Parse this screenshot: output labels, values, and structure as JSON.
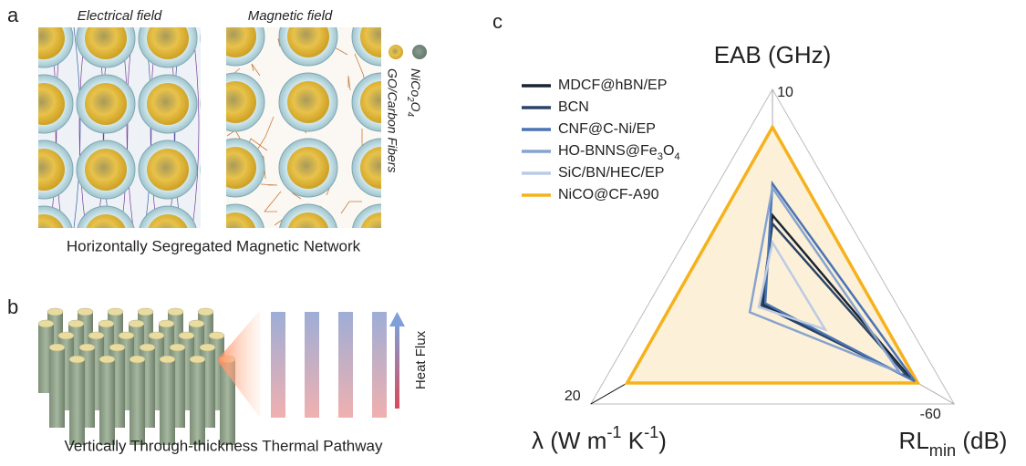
{
  "panels": {
    "a": {
      "label": "a",
      "left_title": "Electrical field",
      "right_title": "Magnetic field",
      "legend": [
        [
          "NiCo",
          {
            "sub": "2"
          },
          "O",
          {
            "sub": "4"
          }
        ],
        "GO/Carbon Fibers"
      ],
      "caption": "Horizontally Segregated Magnetic Network"
    },
    "b": {
      "label": "b",
      "arrow_label": "Heat Flux",
      "caption": "Vertically Through-thickness Thermal Pathway"
    },
    "c": {
      "label": "c"
    }
  },
  "chart_data": {
    "type": "radar",
    "axes": [
      {
        "label": "EAB (GHz)",
        "lim": [
          0,
          10
        ],
        "ticks": [
          5,
          10
        ],
        "color": "#aaaaaa"
      },
      {
        "label": [
          "RL",
          {
            "sub": "min"
          },
          " (dB)"
        ],
        "lim": [
          0,
          -60
        ],
        "ticks": [
          -30,
          -60
        ],
        "color": "#aaaaaa"
      },
      {
        "label": [
          "λ (W m",
          {
            "super": "-1"
          },
          " K",
          {
            "super": "-1"
          },
          ")"
        ],
        "lim": [
          0,
          20
        ],
        "ticks": [
          10,
          20
        ],
        "color": "#000000"
      }
    ],
    "grid": true,
    "series": [
      {
        "name": "NiCO@CF-A90",
        "color": "#f5b21c",
        "fill": "#fcf0d8",
        "values": [
          8.2,
          -48,
          16
        ]
      },
      {
        "name": "MDCF@hBN/EP",
        "color": "#1a2433",
        "values": [
          4.0,
          -46,
          1.0
        ]
      },
      {
        "name": "BCN",
        "color": "#2b4466",
        "values": [
          3.6,
          -45,
          1.2
        ]
      },
      {
        "name": "CNF@C-Ni/EP",
        "color": "#4a74b4",
        "values": [
          5.5,
          -47,
          0.8
        ]
      },
      {
        "name": [
          "HO-BNNS@Fe",
          {
            "sub": "3"
          },
          "O",
          {
            "sub": "4"
          }
        ],
        "color": "#86a3cf",
        "values": [
          5.3,
          -42,
          2.5
        ]
      },
      {
        "name": "SiC/BN/HEC/EP",
        "color": "#bccbe4",
        "values": [
          2.7,
          -17.4,
          1.5
        ]
      }
    ],
    "legend_order": [
      1,
      2,
      3,
      4,
      5,
      0
    ]
  }
}
